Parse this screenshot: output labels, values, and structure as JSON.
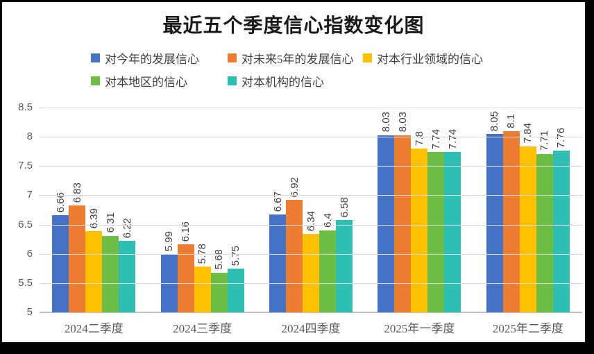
{
  "title": "最近五个季度信心指数变化图",
  "colors": {
    "grid": "#d9d9d9",
    "axis_line": "#bfbfbf",
    "tick_text": "#595959",
    "data_label_text": "#404040",
    "frame_border": "#000000"
  },
  "chart_data": {
    "type": "bar",
    "title": "最近五个季度信心指数变化图",
    "categories": [
      "2024二季度",
      "2024三季度",
      "2024四季度",
      "2025年一季度",
      "2025年二季度"
    ],
    "series": [
      {
        "name": "对今年的发展信心",
        "color": "#4472C4",
        "values": [
          6.66,
          5.99,
          6.67,
          8.03,
          8.05
        ]
      },
      {
        "name": "对未来5年的发展信心",
        "color": "#ED7D31",
        "values": [
          6.83,
          6.16,
          6.92,
          8.03,
          8.1
        ]
      },
      {
        "name": "对本行业领域的信心",
        "color": "#FFC000",
        "values": [
          6.39,
          5.78,
          6.34,
          7.8,
          7.84
        ]
      },
      {
        "name": "对本地区的信心",
        "color": "#6CBE44",
        "values": [
          6.31,
          5.68,
          6.4,
          7.74,
          7.71
        ]
      },
      {
        "name": "对本机构的信心",
        "color": "#2EBFB4",
        "values": [
          6.22,
          5.75,
          6.58,
          7.74,
          7.76
        ]
      }
    ],
    "xlabel": "",
    "ylabel": "",
    "ylim": [
      5,
      8.5
    ],
    "ytick_step": 0.5,
    "grid": true,
    "legend_position": "top",
    "data_labels": "rotated-90-above-bars"
  }
}
